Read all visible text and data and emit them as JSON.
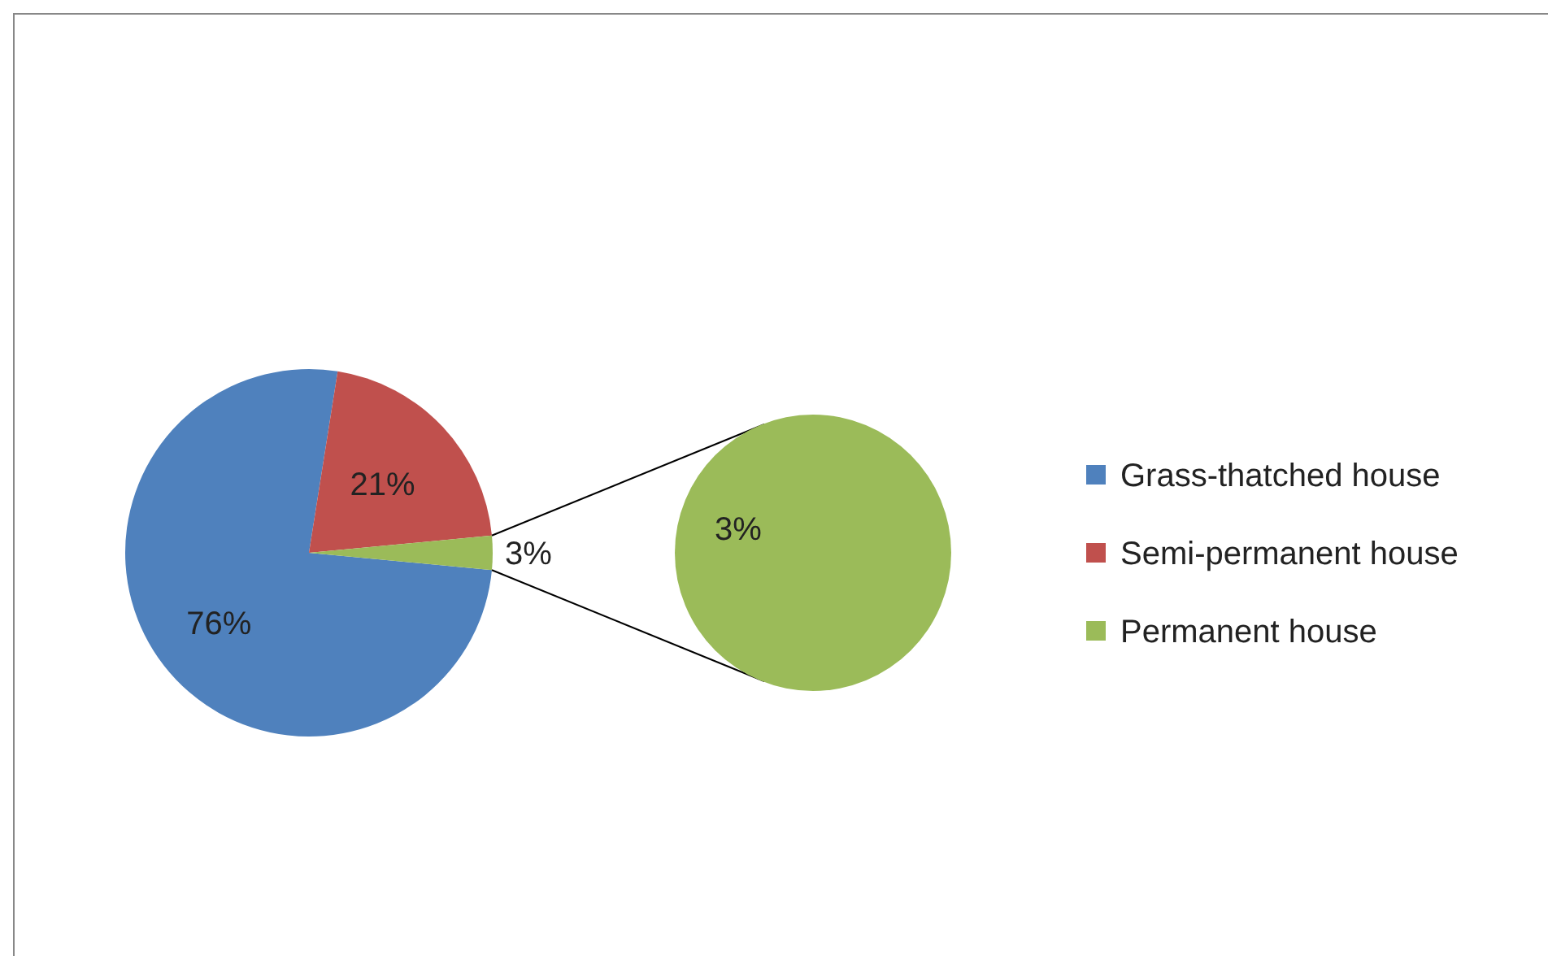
{
  "chart_data": {
    "type": "pie",
    "categories": [
      "Grass-thatched house",
      "Semi-permanent house",
      "Permanent house"
    ],
    "values": [
      76,
      21,
      3
    ],
    "colors": [
      "#4f81bd",
      "#c0504d",
      "#9bbb59"
    ],
    "value_labels": [
      "76%",
      "21%",
      "3%"
    ],
    "annotations": [
      "3%"
    ],
    "legend": "right"
  }
}
